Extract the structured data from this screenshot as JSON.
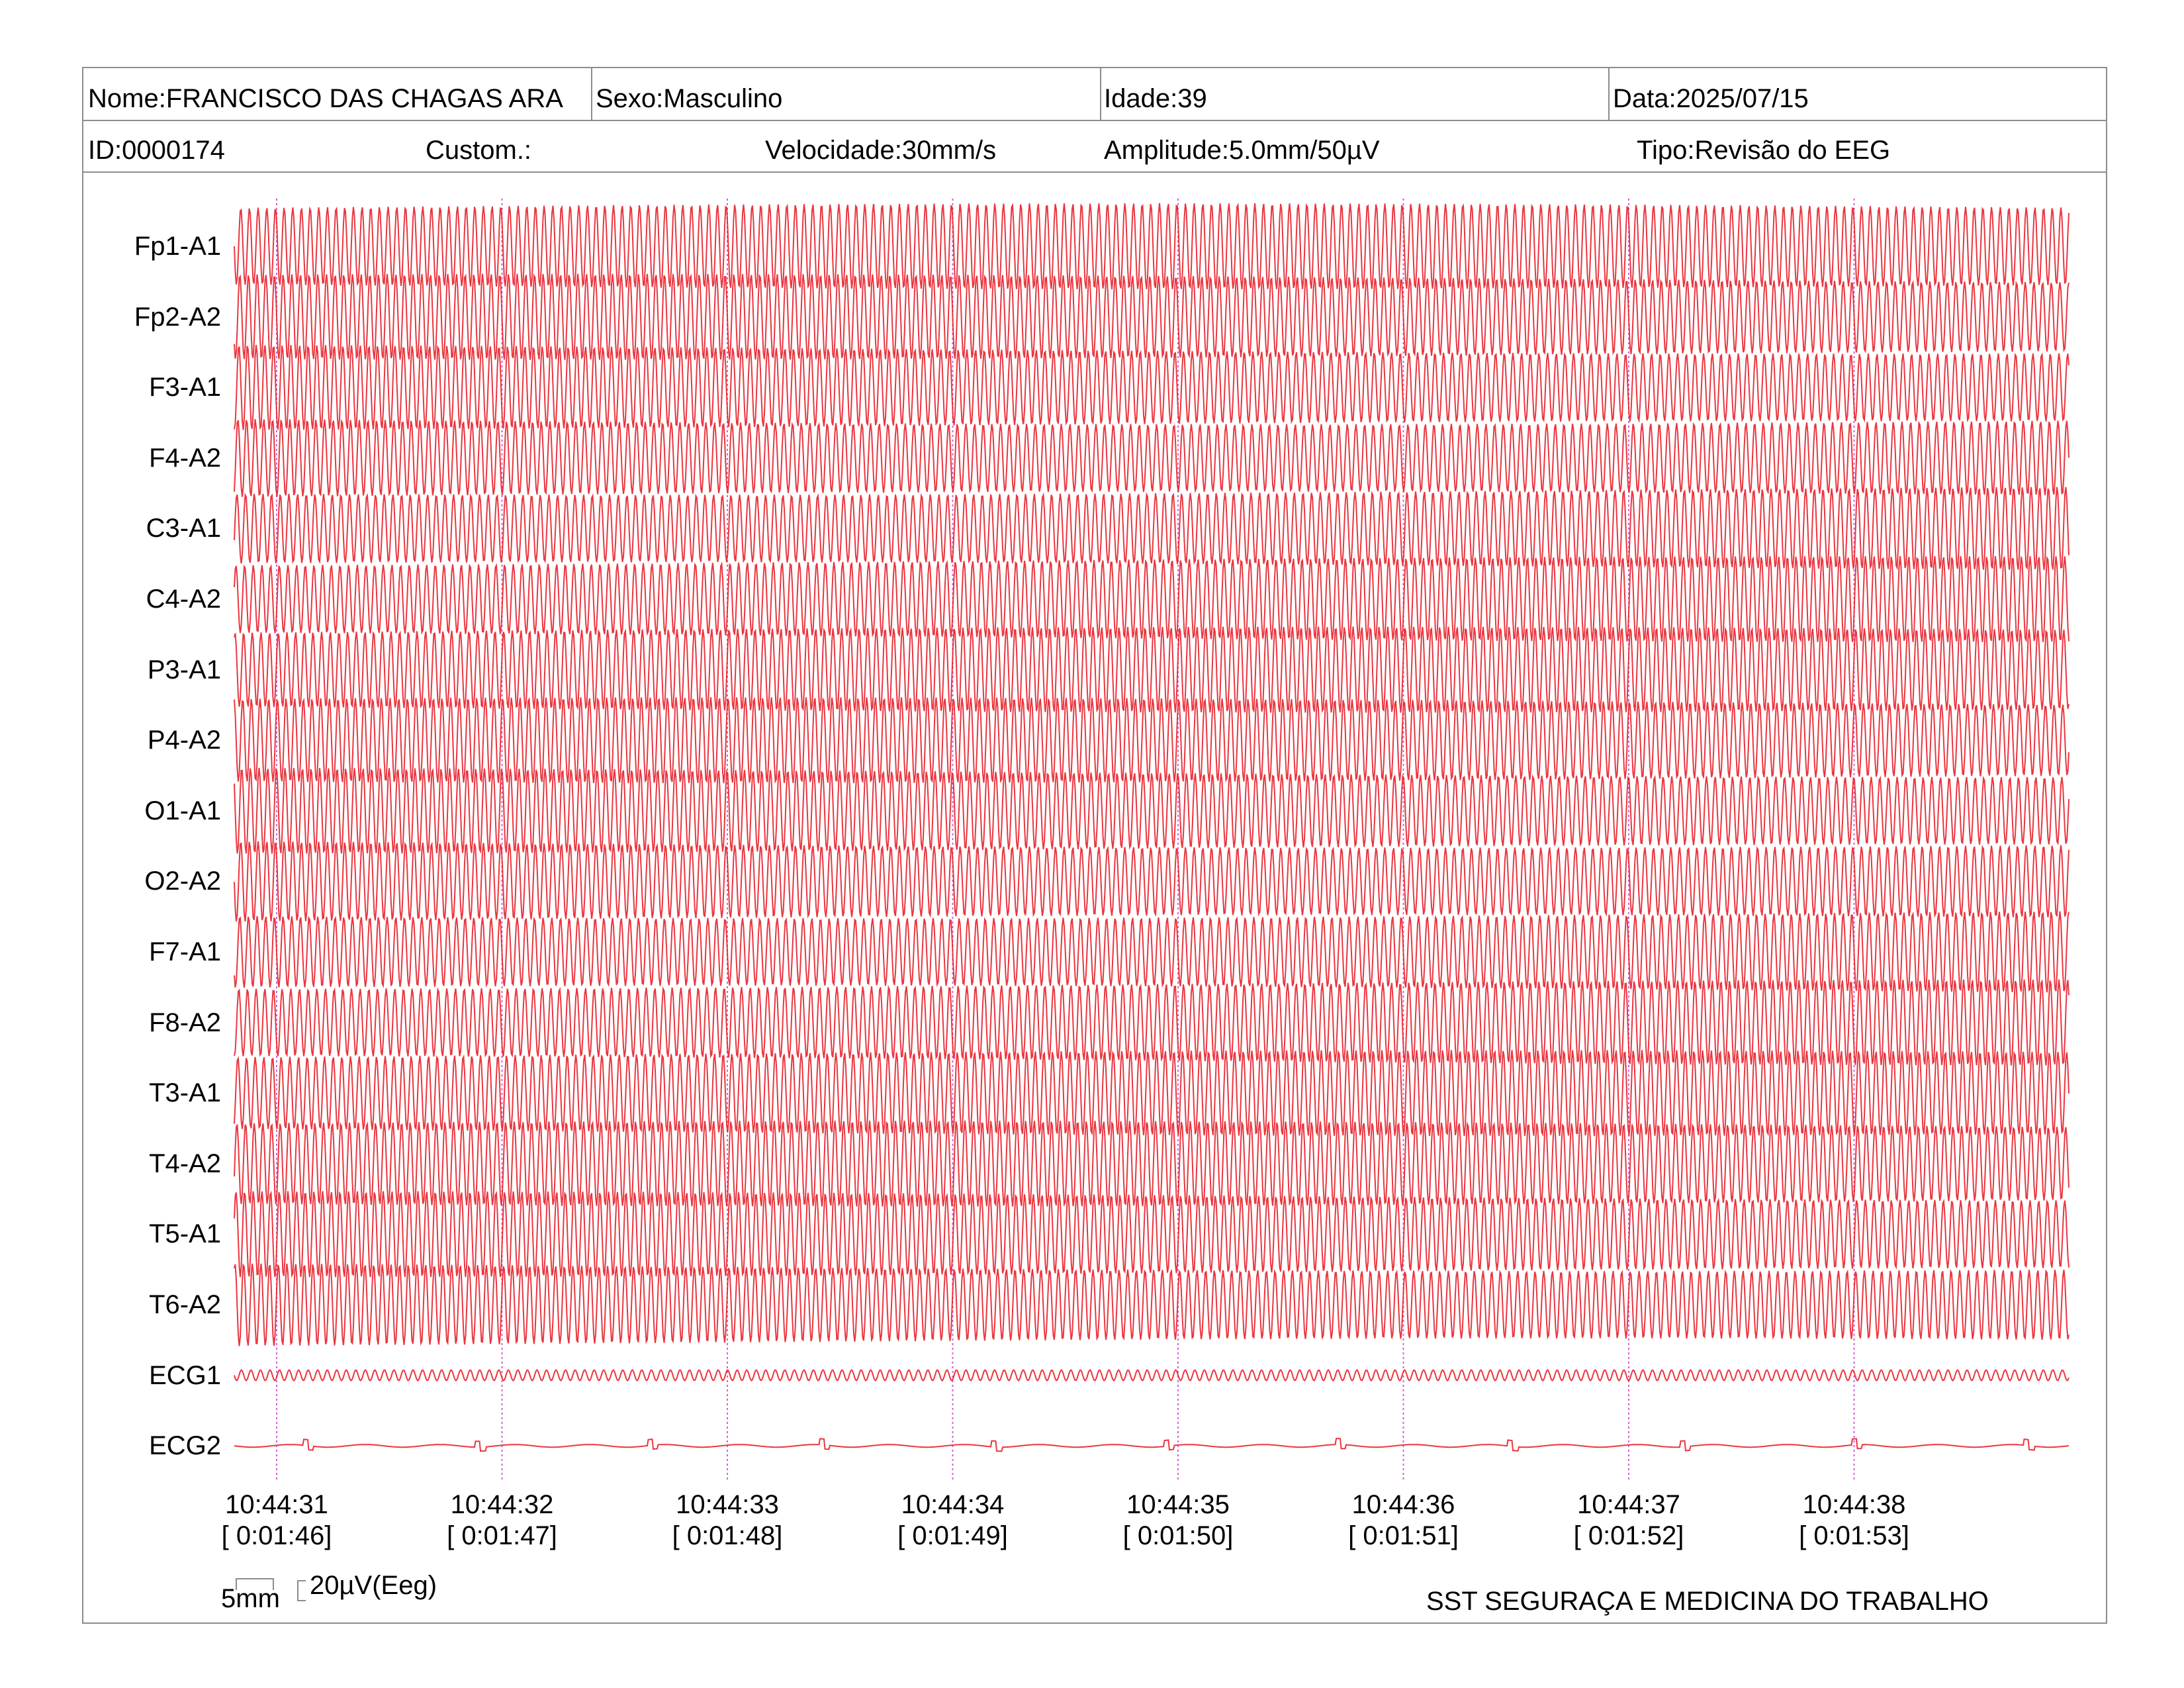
{
  "header": {
    "name": "Nome:FRANCISCO DAS CHAGAS ARA",
    "sex": "Sexo:Masculino",
    "age": "Idade:39",
    "date": "Data:2025/07/15",
    "id": "ID:0000174",
    "custom": "Custom.:",
    "speed": "Velocidade:30mm/s",
    "amplitude": "Amplitude:5.0mm/50µV",
    "type": "Tipo:Revisão do EEG"
  },
  "chart_data": {
    "type": "line",
    "channels": [
      "Fp1-A1",
      "Fp2-A2",
      "F3-A1",
      "F4-A2",
      "C3-A1",
      "C4-A2",
      "P3-A1",
      "P4-A2",
      "O1-A1",
      "O2-A2",
      "F7-A1",
      "F8-A2",
      "T3-A1",
      "T4-A2",
      "T5-A1",
      "T6-A2",
      "ECG1",
      "ECG2"
    ],
    "time_ticks": [
      "10:44:31",
      "10:44:32",
      "10:44:33",
      "10:44:34",
      "10:44:35",
      "10:44:36",
      "10:44:37",
      "10:44:38"
    ],
    "elapsed_ticks": [
      "[ 0:01:46]",
      "[ 0:01:47]",
      "[ 0:01:48]",
      "[ 0:01:49]",
      "[ 0:01:50]",
      "[ 0:01:51]",
      "[ 0:01:52]",
      "[ 0:01:53]"
    ],
    "seconds_shown": 8.2,
    "eeg_oscillation_hz": 26,
    "trace_color": "#e8202a",
    "time_marker_color": "#d060d0"
  },
  "scale": {
    "time_scale": "5mm",
    "amp_scale": "20µV(Eeg)"
  },
  "footer": {
    "company": "SST SEGURAÇA E MEDICINA DO TRABALHO"
  }
}
